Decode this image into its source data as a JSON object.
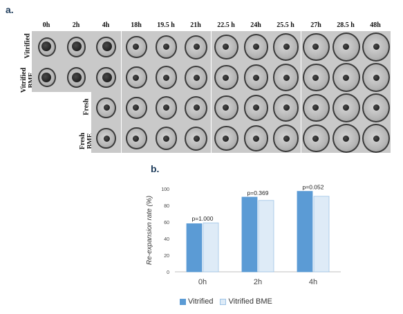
{
  "panel_a_label": "a.",
  "panel_b_label": "b.",
  "time_points": [
    "0h",
    "2h",
    "4h",
    "18h",
    "19.5 h",
    "21h",
    "22.5 h",
    "24h",
    "25.5 h",
    "27h",
    "28.5 h",
    "48h"
  ],
  "rows": [
    {
      "label_line1": "Vitrified",
      "label_line2": ""
    },
    {
      "label_line1": "Vitrified",
      "label_line2": "BME"
    },
    {
      "label_line1": "Fresh",
      "label_line2": ""
    },
    {
      "label_line1": "Fresh",
      "label_line2": "BME"
    }
  ],
  "chart_data": {
    "type": "bar",
    "categories": [
      "0h",
      "2h",
      "4h"
    ],
    "series": [
      {
        "name": "Vitrified",
        "values": [
          58,
          90,
          97
        ],
        "color": "#5b9bd5"
      },
      {
        "name": "Vitrified BME",
        "values": [
          59,
          86,
          91
        ],
        "color": "#deebf7"
      }
    ],
    "annotations": [
      "p=1.000",
      "p=0.369",
      "p=0.052"
    ],
    "ylabel": "Re-expansion rate (%)",
    "yticks": [
      0,
      20,
      40,
      60,
      80,
      100
    ],
    "ylim": [
      0,
      100
    ],
    "legend_position": "bottom",
    "grid": false
  }
}
